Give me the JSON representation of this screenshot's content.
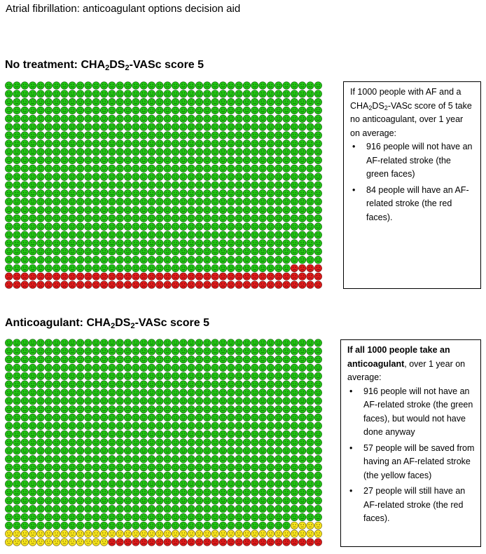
{
  "document": {
    "title": "Atrial fibrillation: anticoagulant options decision aid"
  },
  "colors": {
    "green": "#22c414",
    "yellow": "#f7e51c",
    "red": "#de1a1a"
  },
  "icon_array_grid": {
    "columns": 40,
    "rows": 25,
    "total": 1000
  },
  "sections": [
    {
      "title_pre": "No treatment: CHA",
      "title_sub1": "2",
      "title_mid": "DS",
      "title_sub2": "2",
      "title_post": "-VASc score 5",
      "counts": {
        "green": 916,
        "yellow": 0,
        "red": 84
      },
      "info": {
        "intro_a": "If 1000 people with AF and a CHA",
        "intro_sub1": "2",
        "intro_b": "DS",
        "intro_sub2": "2",
        "intro_c": "-VASc score of 5 take no anticoagulant, over 1 year on average:",
        "bullets": [
          "916 people will not have an AF-related stroke (the green faces)",
          "84 people will have an AF-related stroke (the red faces)."
        ]
      }
    },
    {
      "title_pre": "Anticoagulant: CHA",
      "title_sub1": "2",
      "title_mid": "DS",
      "title_sub2": "2",
      "title_post": "-VASc score 5",
      "counts": {
        "green": 916,
        "yellow": 57,
        "red": 27
      },
      "info": {
        "intro_bold": "If all 1000 people take an anticoagulant",
        "intro_rest": ", over 1 year on average:",
        "bullets": [
          "916 people will not have an AF-related stroke (the green faces), but would not have done anyway",
          "57 people will be saved from having an AF-related stroke (the yellow faces)",
          "27 people will still have an AF-related stroke (the red faces)."
        ]
      }
    }
  ]
}
